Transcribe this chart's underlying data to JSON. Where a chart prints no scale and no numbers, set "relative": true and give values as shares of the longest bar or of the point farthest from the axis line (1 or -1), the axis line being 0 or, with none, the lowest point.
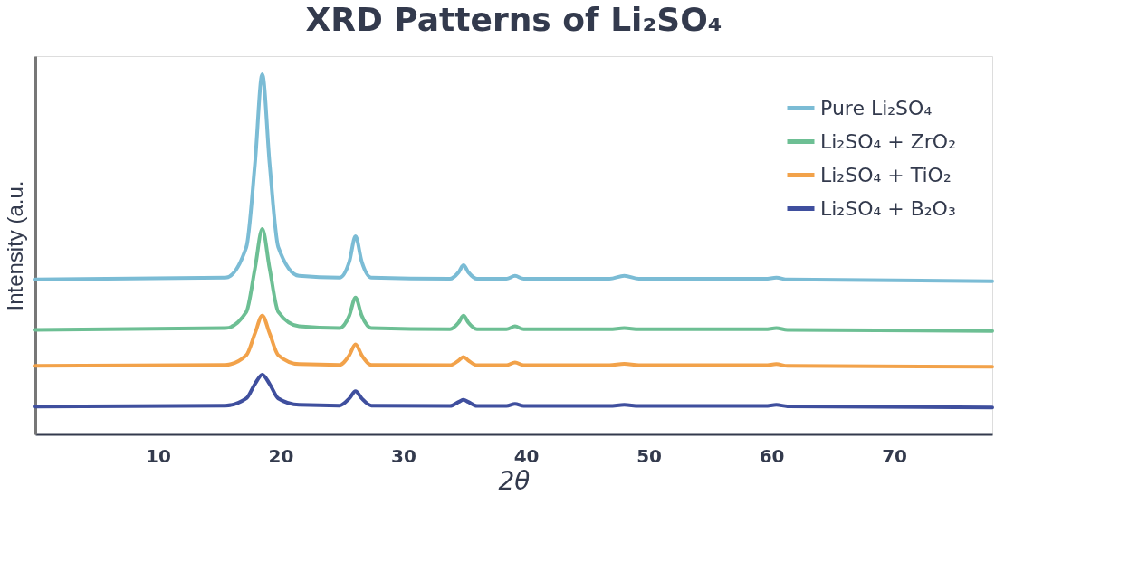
{
  "chart_data": {
    "type": "line",
    "title": "XRD Patterns of Li₂SO₄",
    "xlabel": "2θ",
    "ylabel": "Intensity (a.u.",
    "relative": true,
    "legend": "top right",
    "x": [
      0,
      15.5,
      17.2,
      17.9,
      18.5,
      19.1,
      19.8,
      21.5,
      24.8,
      25.6,
      26.1,
      26.6,
      27.4,
      33.8,
      34.5,
      34.9,
      35.3,
      36.0,
      38.4,
      39.1,
      39.8,
      46.8,
      48.0,
      49.2,
      59.5,
      60.4,
      61.3,
      78
    ],
    "xlim": [
      0,
      78
    ],
    "xticks": [
      10,
      20,
      30,
      40,
      50,
      60,
      70
    ],
    "series": [
      {
        "name": "Pure Li₂SO₄",
        "color": "#7bbcd5",
        "values": [
          0.43,
          0.435,
          0.52,
          0.75,
          1.0,
          0.75,
          0.52,
          0.44,
          0.435,
          0.48,
          0.55,
          0.48,
          0.435,
          0.432,
          0.45,
          0.47,
          0.45,
          0.432,
          0.432,
          0.44,
          0.432,
          0.432,
          0.44,
          0.432,
          0.432,
          0.435,
          0.43,
          0.425
        ]
      },
      {
        "name": "Li₂SO₄ + ZrO₂",
        "color": "#6dbf94",
        "values": [
          0.29,
          0.295,
          0.34,
          0.46,
          0.57,
          0.46,
          0.34,
          0.3,
          0.295,
          0.33,
          0.38,
          0.33,
          0.295,
          0.292,
          0.31,
          0.33,
          0.31,
          0.292,
          0.292,
          0.3,
          0.292,
          0.292,
          0.295,
          0.292,
          0.292,
          0.295,
          0.29,
          0.287
        ]
      },
      {
        "name": "Li₂SO₄ + TiO₂",
        "color": "#f2a24a",
        "values": [
          0.19,
          0.193,
          0.22,
          0.28,
          0.33,
          0.28,
          0.22,
          0.195,
          0.193,
          0.22,
          0.25,
          0.22,
          0.193,
          0.192,
          0.205,
          0.215,
          0.205,
          0.192,
          0.192,
          0.2,
          0.192,
          0.192,
          0.196,
          0.192,
          0.192,
          0.195,
          0.19,
          0.188
        ]
      },
      {
        "name": "Li₂SO₄ + B₂O₃",
        "color": "#3f4f9e",
        "values": [
          0.077,
          0.08,
          0.1,
          0.14,
          0.166,
          0.14,
          0.1,
          0.082,
          0.08,
          0.1,
          0.12,
          0.1,
          0.08,
          0.079,
          0.09,
          0.096,
          0.09,
          0.079,
          0.079,
          0.085,
          0.079,
          0.079,
          0.082,
          0.079,
          0.079,
          0.082,
          0.078,
          0.075
        ]
      }
    ]
  }
}
